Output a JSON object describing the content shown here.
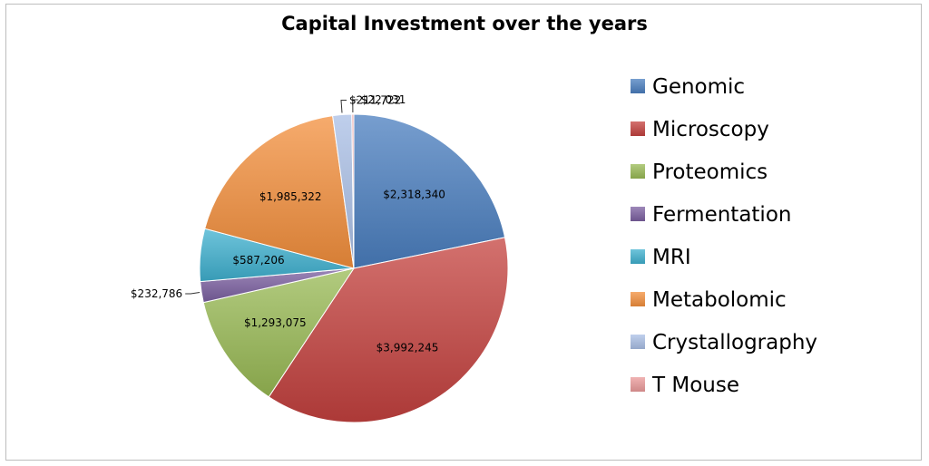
{
  "chart_data": {
    "type": "pie",
    "title": "Capital Investment over the years",
    "legend_position": "right",
    "series": [
      {
        "name": "Genomic",
        "value": 2318340,
        "label": "$2,318,340",
        "color": "#4a7ebf"
      },
      {
        "name": "Microscopy",
        "value": 3992245,
        "label": "$3,992,245",
        "color": "#c4413e"
      },
      {
        "name": "Proteomics",
        "value": 1293075,
        "label": "$1,293,075",
        "color": "#98b954"
      },
      {
        "name": "Fermentation",
        "value": 232786,
        "label": "$232,786",
        "color": "#7b5fa0"
      },
      {
        "name": "MRI",
        "value": 587206,
        "label": "$587,206",
        "color": "#3fb0cf"
      },
      {
        "name": "Metabolomic",
        "value": 1985322,
        "label": "$1,985,322",
        "color": "#f38f3c"
      },
      {
        "name": "Crystallography",
        "value": 211722,
        "label": "$211,722",
        "color": "#a9bfe6"
      },
      {
        "name": "T Mouse",
        "value": 22031,
        "label": "$22,031",
        "color": "#eb9a9a"
      }
    ]
  }
}
